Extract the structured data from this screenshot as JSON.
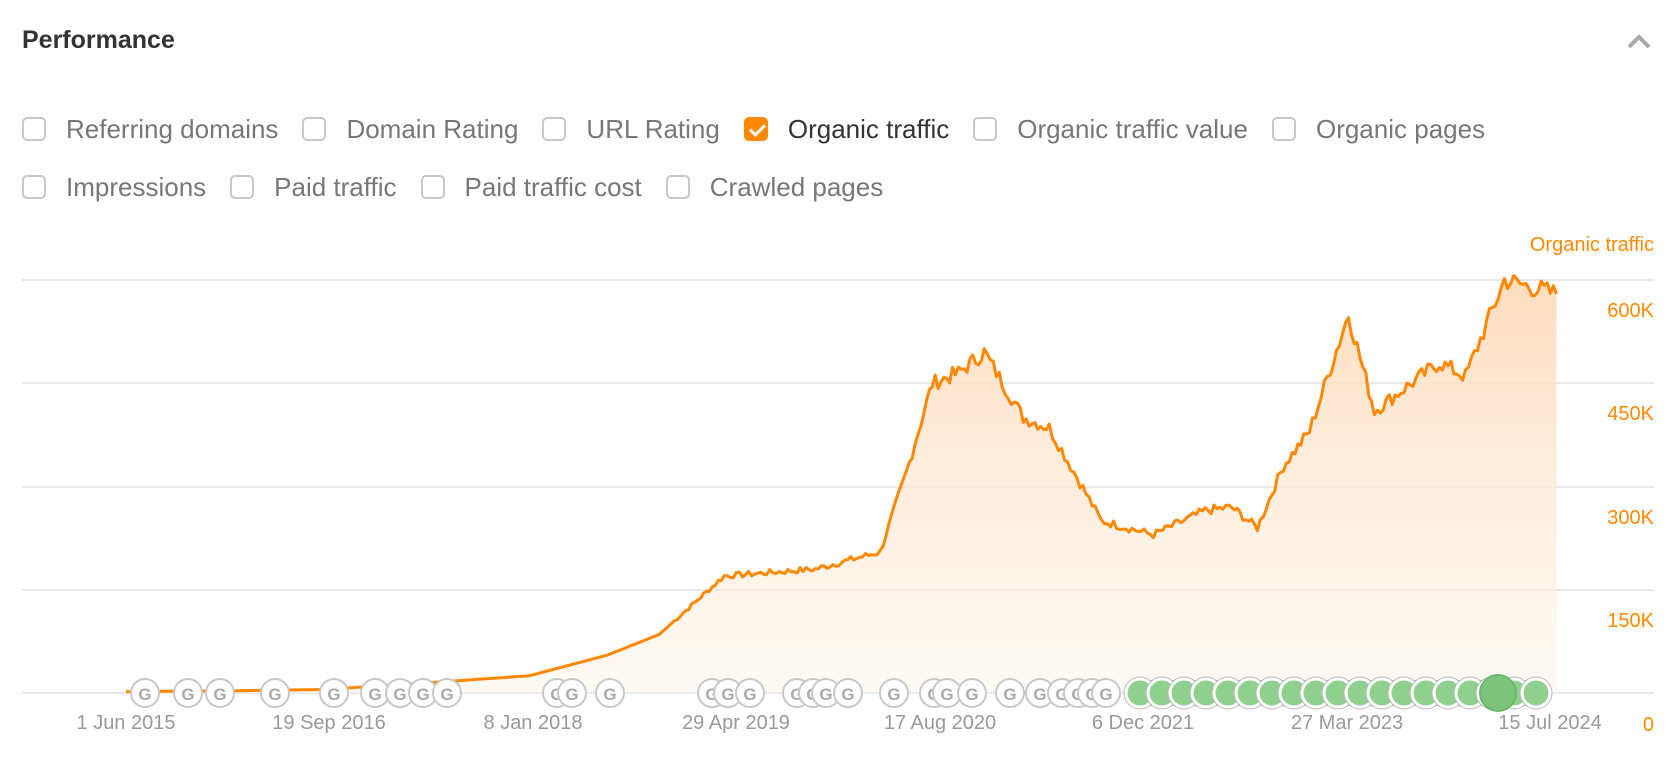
{
  "panel": {
    "title": "Performance",
    "collapse_icon": "chevron-up-icon"
  },
  "metrics": {
    "row1": [
      {
        "label": "Referring domains",
        "checked": false
      },
      {
        "label": "Domain Rating",
        "checked": false
      },
      {
        "label": "URL Rating",
        "checked": false
      },
      {
        "label": "Organic traffic",
        "checked": true
      },
      {
        "label": "Organic traffic value",
        "checked": false
      },
      {
        "label": "Organic pages",
        "checked": false
      }
    ],
    "row2": [
      {
        "label": "Impressions",
        "checked": false
      },
      {
        "label": "Paid traffic",
        "checked": false
      },
      {
        "label": "Paid traffic cost",
        "checked": false
      },
      {
        "label": "Crawled pages",
        "checked": false
      }
    ]
  },
  "colors": {
    "accent": "#ff8800",
    "fill": "#ffe3cc",
    "grid": "#e8e8e8",
    "marker_green": "#8fd08f",
    "marker_gray": "#bbbbbb"
  },
  "chart_data": {
    "type": "area",
    "title": "Organic traffic",
    "ylabel": "Organic traffic",
    "xlabel": "",
    "ylim": [
      0,
      600000
    ],
    "yticks": [
      "0",
      "150K",
      "300K",
      "450K",
      "600K"
    ],
    "xticks": [
      "1 Jun 2015",
      "19 Sep 2016",
      "8 Jan 2018",
      "29 Apr 2019",
      "17 Aug 2020",
      "6 Dec 2021",
      "27 Mar 2023",
      "15 Jul 2024"
    ],
    "grid": true,
    "legend_position": "none",
    "x": [
      "Jun 2015",
      "Jan 2016",
      "Sep 2016",
      "Mar 2017",
      "Jan 2018",
      "Jul 2018",
      "Nov 2018",
      "Apr 2019",
      "Nov 2019",
      "Apr 2020",
      "Jun 2020",
      "Aug 2020",
      "Oct 2020",
      "Dec 2020",
      "Mar 2021",
      "May 2021",
      "Sep 2021",
      "Jan 2022",
      "May 2022",
      "Jul 2022",
      "Sep 2022",
      "Nov 2022",
      "Jan 2023",
      "Apr 2023",
      "Jun 2023",
      "Nov 2023",
      "Jan 2024",
      "Apr 2024",
      "Aug 2024"
    ],
    "series": [
      {
        "name": "Organic traffic",
        "values": [
          2000,
          3000,
          5000,
          12000,
          25000,
          55000,
          85000,
          170000,
          180000,
          205000,
          320000,
          450000,
          465000,
          495000,
          400000,
          385000,
          250000,
          230000,
          265000,
          270000,
          240000,
          330000,
          380000,
          550000,
          410000,
          480000,
          460000,
          600000,
          580000
        ]
      }
    ],
    "annotations": "Google update markers (G) along the x-axis from 2015 through 2024, green markers dense from late 2021 to 2024"
  }
}
